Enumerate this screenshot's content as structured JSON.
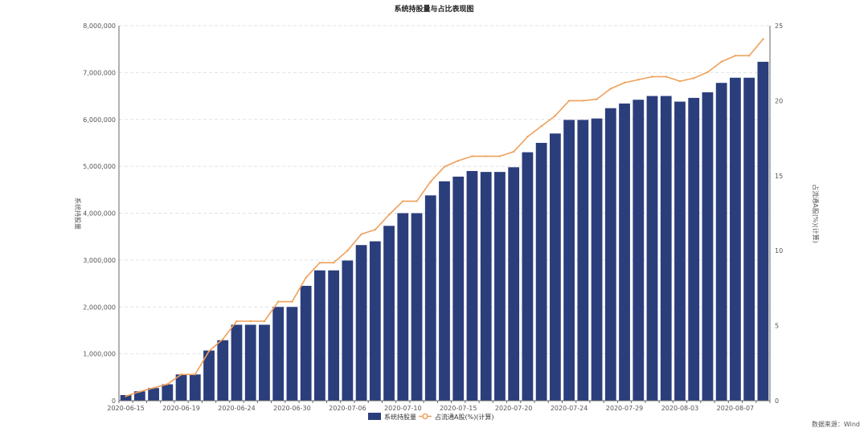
{
  "chart_data": {
    "type": "bar",
    "title": "系统持股量与占比表现图",
    "ylabel": "系统持股量",
    "y2label": "占流通A股(%)(计算)",
    "ylim": [
      0,
      8000000
    ],
    "y2lim": [
      0,
      25
    ],
    "yticks": [
      "0",
      "1,000,000",
      "2,000,000",
      "3,000,000",
      "4,000,000",
      "5,000,000",
      "6,000,000",
      "7,000,000",
      "8,000,000"
    ],
    "y2ticks": [
      "0",
      "5",
      "10",
      "15",
      "20",
      "25"
    ],
    "x_tick_labels": [
      "2020-06-15",
      "2020-06-19",
      "2020-06-24",
      "2020-06-30",
      "2020-07-06",
      "2020-07-10",
      "2020-07-15",
      "2020-07-20",
      "2020-07-24",
      "2020-07-29",
      "2020-08-03",
      "2020-08-07"
    ],
    "x_tick_every": 4,
    "grid": true,
    "legend_position": "bottom",
    "series": [
      {
        "name": "系统持股量",
        "type": "bar",
        "color": "#2b3e7c",
        "values": [
          120000,
          200000,
          270000,
          350000,
          560000,
          560000,
          1070000,
          1290000,
          1620000,
          1620000,
          1620000,
          2000000,
          2000000,
          2450000,
          2780000,
          2780000,
          2990000,
          3320000,
          3400000,
          3730000,
          4000000,
          4000000,
          4380000,
          4680000,
          4780000,
          4900000,
          4880000,
          4880000,
          4980000,
          5300000,
          5500000,
          5700000,
          5990000,
          5990000,
          6020000,
          6240000,
          6340000,
          6420000,
          6500000,
          6500000,
          6380000,
          6460000,
          6580000,
          6780000,
          6890000,
          6890000,
          7230000
        ]
      },
      {
        "name": "占流通A股(%)(计算)",
        "type": "line",
        "axis": "right",
        "color": "#f0a05a",
        "values": [
          0.3,
          0.6,
          0.85,
          1.1,
          1.75,
          1.75,
          3.3,
          4.1,
          5.3,
          5.3,
          5.3,
          6.6,
          6.6,
          8.2,
          9.2,
          9.2,
          10.0,
          11.1,
          11.4,
          12.4,
          13.3,
          13.3,
          14.6,
          15.6,
          16.0,
          16.3,
          16.3,
          16.3,
          16.6,
          17.6,
          18.3,
          19.0,
          20.0,
          20.0,
          20.1,
          20.8,
          21.2,
          21.4,
          21.6,
          21.6,
          21.3,
          21.5,
          21.9,
          22.6,
          23.0,
          23.0,
          24.1
        ]
      }
    ]
  },
  "footer": {
    "source": "数据来源：Wind"
  }
}
